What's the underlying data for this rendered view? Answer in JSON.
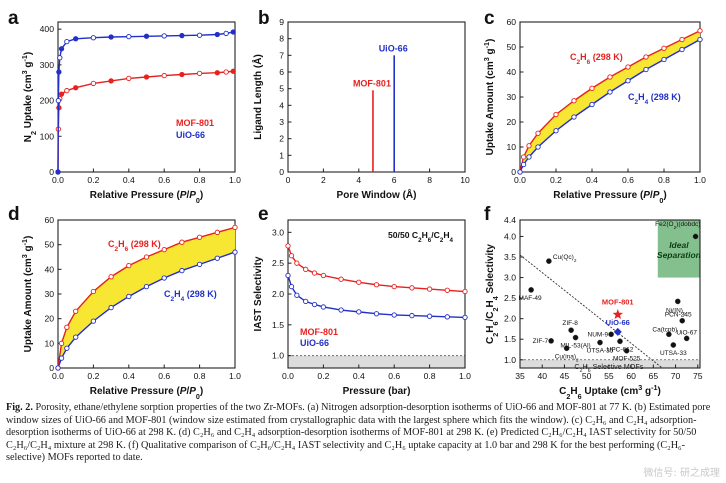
{
  "caption": {
    "label": "Fig. 2.",
    "text": "Porosity, ethane/ethylene sorption properties of the two Zr-MOFs. (a) Nitrogen adsorption-desorption isotherms of UiO-66 and MOF-801 at 77 K. (b) Estimated pore window sizes of UiO-66 and MOF-801 (window size estimated from crystallographic data with the largest sphere which fits the window). (c) C₂H₆ and C₂H₄ adsorption-desorption isotherms of UiO-66 at 298 K. (d) C₂H₆ and C₂H₄ adsorption-desorption isotherms of MOF-801 at 298 K. (e) Predicted C₂H₆/C₂H₄ IAST selectivity for 50/50 C₂H₆/C₂H₄ mixture at 298 K. (f) Qualitative comparison of C₂H₆/C₂H₄ IAST selectivity and C₂H₆ uptake capacity at 1.0 bar and 298 K for the best performing (C₂H₆-selective) MOFs reported to date."
  },
  "watermark": "微信号: 研之成理",
  "colors": {
    "red": "#e8211f",
    "blue": "#2230c8",
    "fill": "#f7e733",
    "green": "#6fb57a",
    "axis": "#222222"
  },
  "chart_data": [
    {
      "panel": "a",
      "type": "line",
      "xlabel": "Relative Pressure (P/P0)",
      "ylabel": "N2 Uptake (cm3 g-1)",
      "xlim": [
        0,
        1
      ],
      "ylim": [
        0,
        420
      ],
      "xticks": [
        0.0,
        0.2,
        0.4,
        0.6,
        0.8,
        1.0
      ],
      "xtick_labels": [
        "0.0",
        "0.2",
        "0.4",
        "0.6",
        "0.8",
        "1.0"
      ],
      "yticks": [
        0,
        100,
        200,
        300,
        400
      ],
      "ytick_labels": [
        "0",
        "100",
        "200",
        "300",
        "400"
      ],
      "legend": [
        "MOF-801",
        "UiO-66"
      ],
      "series": [
        {
          "name": "MOF-801",
          "color": "red",
          "x": [
            0.0,
            0.002,
            0.005,
            0.01,
            0.02,
            0.05,
            0.1,
            0.2,
            0.3,
            0.4,
            0.5,
            0.6,
            0.7,
            0.8,
            0.9,
            0.95,
            0.99
          ],
          "y": [
            0,
            120,
            180,
            205,
            218,
            228,
            236,
            248,
            255,
            262,
            266,
            270,
            273,
            276,
            278,
            280,
            282
          ]
        },
        {
          "name": "UiO-66",
          "color": "blue",
          "x": [
            0.0,
            0.002,
            0.005,
            0.01,
            0.02,
            0.05,
            0.1,
            0.2,
            0.3,
            0.4,
            0.5,
            0.6,
            0.7,
            0.8,
            0.9,
            0.95,
            0.99
          ],
          "y": [
            0,
            200,
            280,
            320,
            345,
            365,
            373,
            376,
            378,
            379,
            380,
            381,
            382,
            383,
            385,
            388,
            392
          ]
        }
      ]
    },
    {
      "panel": "b",
      "type": "bar",
      "xlabel": "Pore Window (Å)",
      "ylabel": "Ligand Length (Å)",
      "xlim": [
        0,
        10
      ],
      "ylim": [
        0,
        9
      ],
      "xticks": [
        0,
        2,
        4,
        6,
        8,
        10
      ],
      "xtick_labels": [
        "0",
        "2",
        "4",
        "6",
        "8",
        "10"
      ],
      "yticks": [
        0,
        1,
        2,
        3,
        4,
        5,
        6,
        7,
        8,
        9
      ],
      "ytick_labels": [
        "0",
        "1",
        "2",
        "3",
        "4",
        "5",
        "6",
        "7",
        "8",
        "9"
      ],
      "bars": [
        {
          "name": "MOF-801",
          "color": "red",
          "x": 4.8,
          "value": 4.9
        },
        {
          "name": "UiO-66",
          "color": "blue",
          "x": 6.0,
          "value": 7.0
        }
      ]
    },
    {
      "panel": "c",
      "type": "line",
      "xlabel": "Relative Pressure (P/P0)",
      "ylabel": "Uptake Amount (cm3 g-1)",
      "xlim": [
        0,
        1
      ],
      "ylim": [
        0,
        60
      ],
      "xticks": [
        0.0,
        0.2,
        0.4,
        0.6,
        0.8,
        1.0
      ],
      "xtick_labels": [
        "0.0",
        "0.2",
        "0.4",
        "0.6",
        "0.8",
        "1.0"
      ],
      "yticks": [
        0,
        10,
        20,
        30,
        40,
        50,
        60
      ],
      "ytick_labels": [
        "0",
        "10",
        "20",
        "30",
        "40",
        "50",
        "60"
      ],
      "fill_between": true,
      "series": [
        {
          "name": "C2H6 (298 K)",
          "color": "red",
          "x": [
            0.0,
            0.02,
            0.05,
            0.1,
            0.2,
            0.3,
            0.4,
            0.5,
            0.6,
            0.7,
            0.8,
            0.9,
            1.0
          ],
          "y": [
            0,
            6,
            10.5,
            15.5,
            23,
            28.5,
            33.5,
            38,
            42,
            46,
            49.5,
            53,
            56.5
          ]
        },
        {
          "name": "C2H4 (298 K)",
          "color": "blue",
          "x": [
            0.0,
            0.02,
            0.05,
            0.1,
            0.2,
            0.3,
            0.4,
            0.5,
            0.6,
            0.7,
            0.8,
            0.9,
            1.0
          ],
          "y": [
            0,
            3,
            6,
            10,
            16.5,
            22,
            27,
            32,
            36.5,
            41,
            45,
            49,
            53
          ]
        }
      ]
    },
    {
      "panel": "d",
      "type": "line",
      "xlabel": "Relative Pressure (P/P0)",
      "ylabel": "Uptake Amount (cm3 g-1)",
      "xlim": [
        0,
        1
      ],
      "ylim": [
        0,
        60
      ],
      "xticks": [
        0.0,
        0.2,
        0.4,
        0.6,
        0.8,
        1.0
      ],
      "xtick_labels": [
        "0.0",
        "0.2",
        "0.4",
        "0.6",
        "0.8",
        "1.0"
      ],
      "yticks": [
        0,
        10,
        20,
        30,
        40,
        50,
        60
      ],
      "ytick_labels": [
        "0",
        "10",
        "20",
        "30",
        "40",
        "50",
        "60"
      ],
      "fill_between": true,
      "series": [
        {
          "name": "C2H6 (298 K)",
          "color": "red",
          "x": [
            0.0,
            0.02,
            0.05,
            0.1,
            0.2,
            0.3,
            0.4,
            0.5,
            0.6,
            0.7,
            0.8,
            0.9,
            1.0
          ],
          "y": [
            0,
            10,
            16.5,
            23,
            31,
            37,
            41.5,
            45,
            48,
            51,
            53,
            55,
            57
          ]
        },
        {
          "name": "C2H4 (298 K)",
          "color": "blue",
          "x": [
            0.0,
            0.02,
            0.05,
            0.1,
            0.2,
            0.3,
            0.4,
            0.5,
            0.6,
            0.7,
            0.8,
            0.9,
            1.0
          ],
          "y": [
            0,
            4,
            8,
            12.5,
            19,
            24.5,
            29,
            33,
            36.5,
            39.5,
            42,
            44.5,
            47
          ]
        }
      ]
    },
    {
      "panel": "e",
      "type": "line",
      "xlabel": "Pressure (bar)",
      "ylabel": "IAST Selectivity",
      "xlim": [
        0,
        1
      ],
      "ylim": [
        0.8,
        3.2
      ],
      "xticks": [
        0.0,
        0.2,
        0.4,
        0.6,
        0.8,
        1.0
      ],
      "xtick_labels": [
        "0.0",
        "0.2",
        "0.4",
        "0.6",
        "0.8",
        "1.0"
      ],
      "yticks": [
        1.0,
        1.5,
        2.0,
        2.5,
        3.0
      ],
      "ytick_labels": [
        "1.0",
        "1.5",
        "2.0",
        "2.5",
        "3.0"
      ],
      "reference_line": 1.0,
      "annotation": "50/50 C2H6/C2H4",
      "series": [
        {
          "name": "MOF-801",
          "color": "red",
          "x": [
            0.0,
            0.02,
            0.05,
            0.1,
            0.15,
            0.2,
            0.3,
            0.4,
            0.5,
            0.6,
            0.7,
            0.8,
            0.9,
            1.0
          ],
          "y": [
            2.78,
            2.62,
            2.5,
            2.4,
            2.34,
            2.3,
            2.24,
            2.19,
            2.15,
            2.12,
            2.1,
            2.08,
            2.06,
            2.04
          ]
        },
        {
          "name": "UiO-66",
          "color": "blue",
          "x": [
            0.0,
            0.02,
            0.05,
            0.1,
            0.15,
            0.2,
            0.3,
            0.4,
            0.5,
            0.6,
            0.7,
            0.8,
            0.9,
            1.0
          ],
          "y": [
            2.3,
            2.12,
            1.98,
            1.88,
            1.83,
            1.79,
            1.74,
            1.71,
            1.68,
            1.66,
            1.65,
            1.64,
            1.63,
            1.62
          ]
        }
      ]
    },
    {
      "panel": "f",
      "type": "scatter",
      "xlabel": "C2H6 Uptake (cm3 g-1)",
      "ylabel": "C2H6/C2H4 Selectivity",
      "xlim": [
        35,
        75.5
      ],
      "ylim": [
        0.8,
        4.4
      ],
      "xticks": [
        35,
        40,
        45,
        50,
        55,
        60,
        65,
        70,
        75
      ],
      "xtick_labels": [
        "35",
        "40",
        "45",
        "50",
        "55",
        "60",
        "65",
        "70",
        "75"
      ],
      "yticks": [
        1.0,
        1.5,
        2.0,
        2.5,
        3.0,
        3.5,
        4.0,
        4.4
      ],
      "ytick_labels": [
        "1.0",
        "1.5",
        "2.0",
        "2.5",
        "3.0",
        "3.5",
        "4.0",
        "4.4"
      ],
      "ideal_region": {
        "label_top": "Fe2(O2)(dobdc)",
        "label": "Ideal Separation",
        "x": [
          66,
          75.5
        ],
        "y": [
          3.0,
          4.4
        ]
      },
      "selective_label": "C2H6 Selective MOFs",
      "reference_line": 1.0,
      "trend_line": {
        "x": [
          35,
          67
        ],
        "y": [
          3.55,
          0.8
        ]
      },
      "points": [
        {
          "name": "Cu(Qc)2",
          "x": 41.5,
          "y": 3.4
        },
        {
          "name": "MAF-49",
          "x": 37.5,
          "y": 2.7
        },
        {
          "name": "ZIF-8",
          "x": 46.5,
          "y": 1.72
        },
        {
          "name": "ZIF-7",
          "x": 42,
          "y": 1.46
        },
        {
          "name": "MIL-53(Al)",
          "x": 47.5,
          "y": 1.54
        },
        {
          "name": "Cu(ina)2",
          "x": 45.5,
          "y": 1.28
        },
        {
          "name": "NUM-9",
          "x": 55.5,
          "y": 1.62
        },
        {
          "name": "UTSA-35",
          "x": 53,
          "y": 1.42
        },
        {
          "name": "UPC-612",
          "x": 57.5,
          "y": 1.45
        },
        {
          "name": "MOF-525",
          "x": 59,
          "y": 1.22
        },
        {
          "name": "Ni(IN)2",
          "x": 70.5,
          "y": 2.42
        },
        {
          "name": "PCN-245",
          "x": 71.5,
          "y": 1.95
        },
        {
          "name": "Ca(tcpb)",
          "x": 68.5,
          "y": 1.62
        },
        {
          "name": "UiO-67",
          "x": 72.5,
          "y": 1.52
        },
        {
          "name": "UTSA-33",
          "x": 69.5,
          "y": 1.36
        },
        {
          "name": "Fe2(O2)(dobdc)",
          "x": 74.5,
          "y": 4.0
        }
      ],
      "highlight": [
        {
          "name": "MOF-801",
          "x": 57,
          "y": 2.1,
          "color": "red"
        },
        {
          "name": "UiO-66",
          "x": 57,
          "y": 1.68,
          "color": "blue"
        }
      ]
    }
  ]
}
